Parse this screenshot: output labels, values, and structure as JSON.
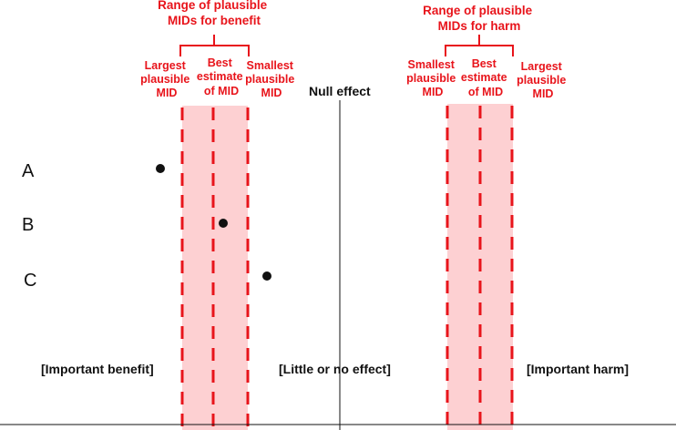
{
  "benefit_title": [
    "Range of plausible",
    "MIDs for benefit"
  ],
  "harm_title": [
    "Range of plausible",
    "MIDs for harm"
  ],
  "benefit_labels": {
    "largest": [
      "Largest",
      "plausible",
      "MID"
    ],
    "best": [
      "Best",
      "estimate",
      "of MID"
    ],
    "smallest": [
      "Smallest",
      "plausible",
      "MID"
    ]
  },
  "harm_labels": {
    "smallest": [
      "Smallest",
      "plausible",
      "MID"
    ],
    "best": [
      "Best",
      "estimate",
      "of MID"
    ],
    "largest": [
      "Largest",
      "plausible",
      "MID"
    ]
  },
  "null_label": "Null effect",
  "rows": [
    "A",
    "B",
    "C"
  ],
  "regions": {
    "benefit": "[Important benefit]",
    "little": "[Little or no effect]",
    "harm": "[Important harm]"
  },
  "colors": {
    "accent": "#e8141b",
    "band": "#fdd0d2",
    "ink": "#111111"
  }
}
